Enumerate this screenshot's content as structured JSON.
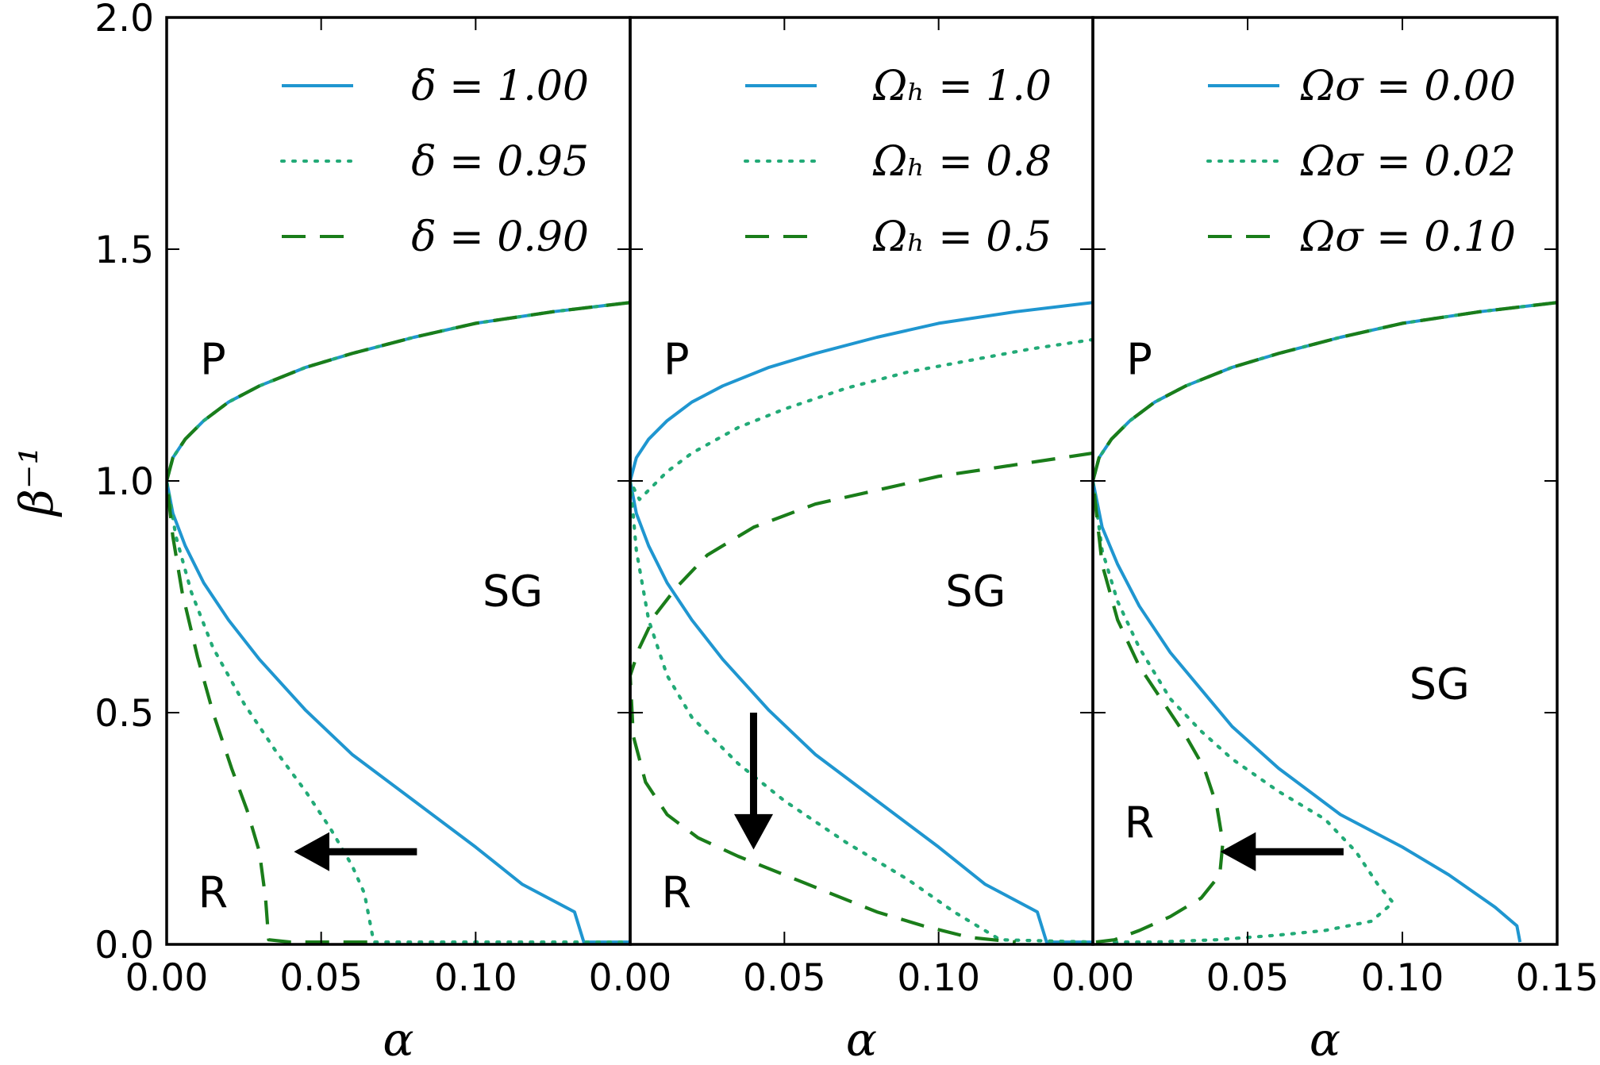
{
  "chart_data": [
    {
      "type": "line",
      "title": "",
      "xlabel": "α",
      "ylabel": "β⁻¹",
      "xlim": [
        0,
        0.15
      ],
      "ylim": [
        0,
        2.0
      ],
      "xticks": [
        "0.00",
        "0.05",
        "0.10",
        ""
      ],
      "yticks": [
        "0.0",
        "0.5",
        "1.0",
        "1.5",
        "2.0"
      ],
      "legend": "top-right",
      "regions": [
        {
          "label": "P",
          "x": 0.015,
          "y": 1.23
        },
        {
          "label": "SG",
          "x": 0.112,
          "y": 0.73
        },
        {
          "label": "R",
          "x": 0.015,
          "y": 0.08
        }
      ],
      "arrow": {
        "from": [
          0.081,
          0.2
        ],
        "to": [
          0.042,
          0.2
        ]
      },
      "series": [
        {
          "name": "δ = 1.00",
          "style": "solid",
          "color": "#1f96d0",
          "upper": [
            [
              0,
              1.0
            ],
            [
              0.002,
              1.05
            ],
            [
              0.006,
              1.09
            ],
            [
              0.012,
              1.13
            ],
            [
              0.02,
              1.17
            ],
            [
              0.03,
              1.205
            ],
            [
              0.045,
              1.245
            ],
            [
              0.06,
              1.275
            ],
            [
              0.08,
              1.31
            ],
            [
              0.1,
              1.34
            ],
            [
              0.125,
              1.365
            ],
            [
              0.15,
              1.385
            ]
          ],
          "lower": [
            [
              0,
              1.0
            ],
            [
              0.002,
              0.93
            ],
            [
              0.006,
              0.86
            ],
            [
              0.012,
              0.78
            ],
            [
              0.02,
              0.7
            ],
            [
              0.03,
              0.615
            ],
            [
              0.045,
              0.505
            ],
            [
              0.06,
              0.41
            ],
            [
              0.08,
              0.31
            ],
            [
              0.1,
              0.21
            ],
            [
              0.115,
              0.13
            ],
            [
              0.132,
              0.07
            ],
            [
              0.135,
              0.005
            ],
            [
              0.15,
              0.005
            ]
          ]
        },
        {
          "name": "δ = 0.95",
          "style": "dotted",
          "color": "#22aa77",
          "upper": [
            [
              0,
              1.0
            ],
            [
              0.002,
              1.05
            ],
            [
              0.006,
              1.09
            ],
            [
              0.012,
              1.13
            ],
            [
              0.02,
              1.17
            ],
            [
              0.03,
              1.205
            ],
            [
              0.045,
              1.245
            ],
            [
              0.06,
              1.275
            ],
            [
              0.08,
              1.31
            ],
            [
              0.1,
              1.34
            ],
            [
              0.125,
              1.365
            ],
            [
              0.15,
              1.385
            ]
          ],
          "lower": [
            [
              0,
              1.0
            ],
            [
              0.003,
              0.88
            ],
            [
              0.008,
              0.76
            ],
            [
              0.015,
              0.64
            ],
            [
              0.025,
              0.52
            ],
            [
              0.035,
              0.42
            ],
            [
              0.045,
              0.33
            ],
            [
              0.053,
              0.25
            ],
            [
              0.06,
              0.17
            ],
            [
              0.064,
              0.11
            ],
            [
              0.067,
              0.005
            ],
            [
              0.15,
              0.005
            ]
          ]
        },
        {
          "name": "δ = 0.90",
          "style": "dashed",
          "color": "#1a7d1a",
          "upper": [
            [
              0,
              1.0
            ],
            [
              0.002,
              1.05
            ],
            [
              0.006,
              1.09
            ],
            [
              0.012,
              1.13
            ],
            [
              0.02,
              1.17
            ],
            [
              0.03,
              1.205
            ],
            [
              0.045,
              1.245
            ],
            [
              0.06,
              1.275
            ],
            [
              0.08,
              1.31
            ],
            [
              0.1,
              1.34
            ],
            [
              0.125,
              1.365
            ],
            [
              0.15,
              1.385
            ]
          ],
          "lower": [
            [
              0,
              1.0
            ],
            [
              0.002,
              0.88
            ],
            [
              0.005,
              0.76
            ],
            [
              0.01,
              0.62
            ],
            [
              0.015,
              0.5
            ],
            [
              0.021,
              0.38
            ],
            [
              0.026,
              0.29
            ],
            [
              0.03,
              0.2
            ],
            [
              0.032,
              0.1
            ],
            [
              0.033,
              0.01
            ],
            [
              0.04,
              0.005
            ],
            [
              0.065,
              0.005
            ]
          ]
        }
      ]
    },
    {
      "type": "line",
      "title": "",
      "xlabel": "α",
      "ylabel": "",
      "xlim": [
        0,
        0.15
      ],
      "ylim": [
        0,
        2.0
      ],
      "xticks": [
        "0.00",
        "0.05",
        "0.10",
        ""
      ],
      "yticks": [],
      "legend": "top-right",
      "regions": [
        {
          "label": "P",
          "x": 0.015,
          "y": 1.23
        },
        {
          "label": "SG",
          "x": 0.112,
          "y": 0.73
        },
        {
          "label": "R",
          "x": 0.015,
          "y": 0.08
        }
      ],
      "arrow": {
        "from": [
          0.04,
          0.5
        ],
        "to": [
          0.04,
          0.21
        ]
      },
      "series": [
        {
          "name": "Ωₕ = 1.0",
          "style": "solid",
          "color": "#1f96d0",
          "upper": [
            [
              0,
              1.0
            ],
            [
              0.002,
              1.05
            ],
            [
              0.006,
              1.09
            ],
            [
              0.012,
              1.13
            ],
            [
              0.02,
              1.17
            ],
            [
              0.03,
              1.205
            ],
            [
              0.045,
              1.245
            ],
            [
              0.06,
              1.275
            ],
            [
              0.08,
              1.31
            ],
            [
              0.1,
              1.34
            ],
            [
              0.125,
              1.365
            ],
            [
              0.15,
              1.385
            ]
          ],
          "lower": [
            [
              0,
              1.0
            ],
            [
              0.002,
              0.93
            ],
            [
              0.006,
              0.86
            ],
            [
              0.012,
              0.78
            ],
            [
              0.02,
              0.7
            ],
            [
              0.03,
              0.615
            ],
            [
              0.045,
              0.505
            ],
            [
              0.06,
              0.41
            ],
            [
              0.08,
              0.31
            ],
            [
              0.1,
              0.21
            ],
            [
              0.115,
              0.13
            ],
            [
              0.132,
              0.07
            ],
            [
              0.135,
              0.005
            ],
            [
              0.15,
              0.005
            ]
          ]
        },
        {
          "name": "Ωₕ = 0.8",
          "style": "dotted",
          "color": "#22aa77",
          "upper": [
            [
              0,
              1.0
            ],
            [
              0.003,
              0.96
            ],
            [
              0.006,
              0.98
            ],
            [
              0.012,
              1.02
            ],
            [
              0.02,
              1.06
            ],
            [
              0.035,
              1.115
            ],
            [
              0.05,
              1.155
            ],
            [
              0.07,
              1.2
            ],
            [
              0.09,
              1.235
            ],
            [
              0.11,
              1.26
            ],
            [
              0.13,
              1.285
            ],
            [
              0.15,
              1.305
            ]
          ],
          "lower": [
            [
              0,
              1.0
            ],
            [
              0.002,
              0.85
            ],
            [
              0.006,
              0.7
            ],
            [
              0.012,
              0.58
            ],
            [
              0.02,
              0.49
            ],
            [
              0.035,
              0.39
            ],
            [
              0.05,
              0.31
            ],
            [
              0.07,
              0.22
            ],
            [
              0.09,
              0.14
            ],
            [
              0.105,
              0.07
            ],
            [
              0.12,
              0.01
            ],
            [
              0.15,
              0.005
            ]
          ]
        },
        {
          "name": "Ωₕ = 0.5",
          "style": "dashed",
          "color": "#1a7d1a",
          "upper": [
            [
              0,
              0.58
            ],
            [
              0.003,
              0.64
            ],
            [
              0.008,
              0.71
            ],
            [
              0.015,
              0.77
            ],
            [
              0.025,
              0.84
            ],
            [
              0.04,
              0.9
            ],
            [
              0.06,
              0.95
            ],
            [
              0.08,
              0.98
            ],
            [
              0.1,
              1.01
            ],
            [
              0.125,
              1.035
            ],
            [
              0.15,
              1.06
            ]
          ],
          "lower": [
            [
              0,
              0.58
            ],
            [
              0.001,
              0.45
            ],
            [
              0.005,
              0.35
            ],
            [
              0.012,
              0.28
            ],
            [
              0.022,
              0.23
            ],
            [
              0.035,
              0.19
            ],
            [
              0.05,
              0.15
            ],
            [
              0.065,
              0.11
            ],
            [
              0.08,
              0.07
            ],
            [
              0.095,
              0.04
            ],
            [
              0.11,
              0.015
            ],
            [
              0.125,
              0.005
            ]
          ]
        }
      ]
    },
    {
      "type": "line",
      "title": "",
      "xlabel": "α",
      "ylabel": "",
      "xlim": [
        0,
        0.15
      ],
      "ylim": [
        0,
        2.0
      ],
      "xticks": [
        "0.00",
        "0.05",
        "0.10",
        "0.15"
      ],
      "yticks": [],
      "legend": "top-right",
      "regions": [
        {
          "label": "P",
          "x": 0.015,
          "y": 1.23
        },
        {
          "label": "SG",
          "x": 0.112,
          "y": 0.53
        },
        {
          "label": "R",
          "x": 0.015,
          "y": 0.23
        }
      ],
      "arrow": {
        "from": [
          0.081,
          0.2
        ],
        "to": [
          0.042,
          0.2
        ]
      },
      "series": [
        {
          "name": "Ωσ = 0.00",
          "style": "solid",
          "color": "#1f96d0",
          "upper": [
            [
              0,
              1.0
            ],
            [
              0.002,
              1.05
            ],
            [
              0.006,
              1.09
            ],
            [
              0.012,
              1.13
            ],
            [
              0.02,
              1.17
            ],
            [
              0.03,
              1.205
            ],
            [
              0.045,
              1.245
            ],
            [
              0.06,
              1.275
            ],
            [
              0.08,
              1.31
            ],
            [
              0.1,
              1.34
            ],
            [
              0.125,
              1.365
            ],
            [
              0.15,
              1.385
            ]
          ],
          "lower": [
            [
              0,
              1.0
            ],
            [
              0.003,
              0.9
            ],
            [
              0.008,
              0.82
            ],
            [
              0.015,
              0.73
            ],
            [
              0.025,
              0.63
            ],
            [
              0.035,
              0.55
            ],
            [
              0.045,
              0.47
            ],
            [
              0.06,
              0.38
            ],
            [
              0.08,
              0.28
            ],
            [
              0.1,
              0.21
            ],
            [
              0.115,
              0.15
            ],
            [
              0.13,
              0.08
            ],
            [
              0.137,
              0.04
            ],
            [
              0.138,
              0.005
            ]
          ]
        },
        {
          "name": "Ωσ = 0.02",
          "style": "dotted",
          "color": "#22aa77",
          "upper": [
            [
              0,
              1.0
            ],
            [
              0.002,
              1.05
            ],
            [
              0.006,
              1.09
            ],
            [
              0.012,
              1.13
            ],
            [
              0.02,
              1.17
            ],
            [
              0.03,
              1.205
            ],
            [
              0.045,
              1.245
            ],
            [
              0.06,
              1.275
            ],
            [
              0.08,
              1.31
            ],
            [
              0.1,
              1.34
            ],
            [
              0.125,
              1.365
            ],
            [
              0.15,
              1.385
            ]
          ],
          "lower": [
            [
              0,
              1.0
            ],
            [
              0.003,
              0.85
            ],
            [
              0.008,
              0.74
            ],
            [
              0.015,
              0.64
            ],
            [
              0.025,
              0.53
            ],
            [
              0.035,
              0.46
            ],
            [
              0.045,
              0.4
            ],
            [
              0.06,
              0.33
            ],
            [
              0.075,
              0.27
            ],
            [
              0.085,
              0.2
            ],
            [
              0.092,
              0.13
            ],
            [
              0.097,
              0.09
            ],
            [
              0.09,
              0.05
            ],
            [
              0.075,
              0.03
            ],
            [
              0.06,
              0.02
            ],
            [
              0.04,
              0.01
            ],
            [
              0.02,
              0.005
            ],
            [
              0.005,
              0.005
            ]
          ]
        },
        {
          "name": "Ωσ = 0.10",
          "style": "dashed",
          "color": "#1a7d1a",
          "upper": [
            [
              0,
              1.0
            ],
            [
              0.002,
              1.05
            ],
            [
              0.006,
              1.09
            ],
            [
              0.012,
              1.13
            ],
            [
              0.02,
              1.17
            ],
            [
              0.03,
              1.205
            ],
            [
              0.045,
              1.245
            ],
            [
              0.06,
              1.275
            ],
            [
              0.08,
              1.31
            ],
            [
              0.1,
              1.34
            ],
            [
              0.125,
              1.365
            ],
            [
              0.15,
              1.385
            ]
          ],
          "lower": [
            [
              0,
              1.0
            ],
            [
              0.003,
              0.82
            ],
            [
              0.008,
              0.7
            ],
            [
              0.015,
              0.6
            ],
            [
              0.022,
              0.53
            ],
            [
              0.03,
              0.45
            ],
            [
              0.036,
              0.38
            ],
            [
              0.04,
              0.3
            ],
            [
              0.042,
              0.22
            ],
            [
              0.041,
              0.15
            ],
            [
              0.035,
              0.1
            ],
            [
              0.025,
              0.06
            ],
            [
              0.015,
              0.03
            ],
            [
              0.007,
              0.01
            ],
            [
              0.001,
              0.005
            ]
          ]
        }
      ]
    }
  ]
}
